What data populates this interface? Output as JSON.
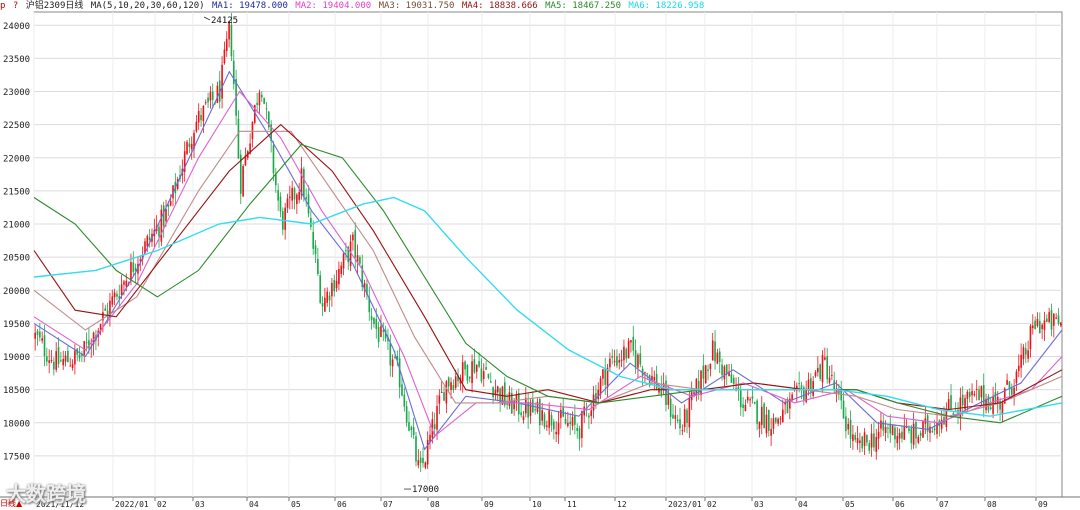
{
  "header": {
    "icon_a": "p",
    "icon_b": "?",
    "contract": "沪铝2309日线",
    "ma_spec": "MA(5,10,20,30,60,120)",
    "ma_values": [
      {
        "label": "MA1: 19478.000",
        "color": "#1f2a9c"
      },
      {
        "label": "MA2: 19404.000",
        "color": "#e040c8"
      },
      {
        "label": "MA3: 19031.750",
        "color": "#7a4b3a"
      },
      {
        "label": "MA4: 18838.666",
        "color": "#9a1010"
      },
      {
        "label": "MA5: 18467.250",
        "color": "#2a8a2a"
      },
      {
        "label": "MA6: 18226.958",
        "color": "#19d8e6"
      }
    ]
  },
  "watermark": "大数跨境",
  "corner_label": "日线▲",
  "chart_data": {
    "type": "candlestick",
    "y_ticks": [
      17500,
      18000,
      18500,
      19000,
      19500,
      20000,
      20500,
      21000,
      21500,
      22000,
      22500,
      23000,
      23500,
      24000
    ],
    "x_labels": [
      "2021/11/12",
      "2022/01",
      "02",
      "03",
      "04",
      "05",
      "06",
      "07",
      "08",
      "09",
      "10",
      "11",
      "12",
      "2023/01",
      "02",
      "03",
      "04",
      "05",
      "06",
      "07",
      "08",
      "09"
    ],
    "annotations": [
      {
        "text": "24125",
        "value": 24125
      },
      {
        "text": "17000",
        "value": 17000
      }
    ],
    "colors": {
      "up": "#e8141b",
      "down": "#19a84a",
      "grid": "#dcdcdc",
      "axis": "#888888"
    },
    "close_path": [
      {
        "t": 0.0,
        "v": 19300
      },
      {
        "t": 0.02,
        "v": 18900
      },
      {
        "t": 0.045,
        "v": 19000
      },
      {
        "t": 0.07,
        "v": 19700
      },
      {
        "t": 0.1,
        "v": 20500
      },
      {
        "t": 0.13,
        "v": 21200
      },
      {
        "t": 0.155,
        "v": 22500
      },
      {
        "t": 0.18,
        "v": 23000
      },
      {
        "t": 0.19,
        "v": 24000
      },
      {
        "t": 0.2,
        "v": 21600
      },
      {
        "t": 0.22,
        "v": 23200
      },
      {
        "t": 0.24,
        "v": 21000
      },
      {
        "t": 0.26,
        "v": 21700
      },
      {
        "t": 0.28,
        "v": 19800
      },
      {
        "t": 0.31,
        "v": 20700
      },
      {
        "t": 0.33,
        "v": 19500
      },
      {
        "t": 0.355,
        "v": 18700
      },
      {
        "t": 0.375,
        "v": 17200
      },
      {
        "t": 0.4,
        "v": 18600
      },
      {
        "t": 0.43,
        "v": 18900
      },
      {
        "t": 0.46,
        "v": 18300
      },
      {
        "t": 0.5,
        "v": 18100
      },
      {
        "t": 0.53,
        "v": 17900
      },
      {
        "t": 0.56,
        "v": 18900
      },
      {
        "t": 0.58,
        "v": 19100
      },
      {
        "t": 0.61,
        "v": 18500
      },
      {
        "t": 0.63,
        "v": 17900
      },
      {
        "t": 0.66,
        "v": 19100
      },
      {
        "t": 0.69,
        "v": 18300
      },
      {
        "t": 0.72,
        "v": 18000
      },
      {
        "t": 0.75,
        "v": 18500
      },
      {
        "t": 0.77,
        "v": 18900
      },
      {
        "t": 0.8,
        "v": 17600
      },
      {
        "t": 0.83,
        "v": 17900
      },
      {
        "t": 0.86,
        "v": 17800
      },
      {
        "t": 0.89,
        "v": 18200
      },
      {
        "t": 0.92,
        "v": 18400
      },
      {
        "t": 0.94,
        "v": 18300
      },
      {
        "t": 0.96,
        "v": 18800
      },
      {
        "t": 0.975,
        "v": 19500
      },
      {
        "t": 1.0,
        "v": 19500
      }
    ],
    "ma_paths": [
      {
        "name": "MA1",
        "color": "#6b6bd6",
        "points": [
          [
            0.0,
            19500
          ],
          [
            0.05,
            19000
          ],
          [
            0.1,
            20300
          ],
          [
            0.16,
            22300
          ],
          [
            0.19,
            23300
          ],
          [
            0.23,
            22300
          ],
          [
            0.27,
            21200
          ],
          [
            0.31,
            20400
          ],
          [
            0.35,
            19100
          ],
          [
            0.38,
            17600
          ],
          [
            0.42,
            18400
          ],
          [
            0.47,
            18300
          ],
          [
            0.53,
            18100
          ],
          [
            0.58,
            18900
          ],
          [
            0.63,
            18300
          ],
          [
            0.68,
            18800
          ],
          [
            0.73,
            18300
          ],
          [
            0.78,
            18600
          ],
          [
            0.82,
            18000
          ],
          [
            0.87,
            17900
          ],
          [
            0.92,
            18300
          ],
          [
            0.96,
            18600
          ],
          [
            1.0,
            19400
          ]
        ]
      },
      {
        "name": "MA2",
        "color": "#e060d0",
        "points": [
          [
            0.0,
            19600
          ],
          [
            0.05,
            19100
          ],
          [
            0.1,
            20100
          ],
          [
            0.16,
            22000
          ],
          [
            0.2,
            23000
          ],
          [
            0.24,
            22300
          ],
          [
            0.28,
            21200
          ],
          [
            0.32,
            20300
          ],
          [
            0.36,
            19000
          ],
          [
            0.39,
            17800
          ],
          [
            0.43,
            18300
          ],
          [
            0.48,
            18300
          ],
          [
            0.54,
            18200
          ],
          [
            0.59,
            18700
          ],
          [
            0.64,
            18400
          ],
          [
            0.69,
            18600
          ],
          [
            0.74,
            18300
          ],
          [
            0.79,
            18500
          ],
          [
            0.83,
            18100
          ],
          [
            0.88,
            18000
          ],
          [
            0.93,
            18300
          ],
          [
            0.97,
            18500
          ],
          [
            1.0,
            19000
          ]
        ]
      },
      {
        "name": "MA3",
        "color": "#c08a8a",
        "points": [
          [
            0.0,
            20000
          ],
          [
            0.05,
            19400
          ],
          [
            0.1,
            19900
          ],
          [
            0.16,
            21500
          ],
          [
            0.2,
            22400
          ],
          [
            0.25,
            22400
          ],
          [
            0.29,
            21500
          ],
          [
            0.33,
            20600
          ],
          [
            0.37,
            19300
          ],
          [
            0.41,
            18300
          ],
          [
            0.45,
            18300
          ],
          [
            0.5,
            18400
          ],
          [
            0.55,
            18300
          ],
          [
            0.6,
            18600
          ],
          [
            0.65,
            18500
          ],
          [
            0.7,
            18600
          ],
          [
            0.75,
            18500
          ],
          [
            0.8,
            18400
          ],
          [
            0.84,
            18200
          ],
          [
            0.89,
            18100
          ],
          [
            0.94,
            18300
          ],
          [
            1.0,
            18700
          ]
        ]
      },
      {
        "name": "MA4",
        "color": "#9a1010",
        "points": [
          [
            0.0,
            20600
          ],
          [
            0.04,
            19700
          ],
          [
            0.08,
            19600
          ],
          [
            0.14,
            20800
          ],
          [
            0.19,
            21800
          ],
          [
            0.24,
            22500
          ],
          [
            0.29,
            21800
          ],
          [
            0.33,
            20900
          ],
          [
            0.38,
            19600
          ],
          [
            0.42,
            18500
          ],
          [
            0.46,
            18400
          ],
          [
            0.5,
            18500
          ],
          [
            0.55,
            18300
          ],
          [
            0.6,
            18500
          ],
          [
            0.65,
            18500
          ],
          [
            0.7,
            18600
          ],
          [
            0.75,
            18500
          ],
          [
            0.8,
            18500
          ],
          [
            0.84,
            18300
          ],
          [
            0.89,
            18200
          ],
          [
            0.94,
            18300
          ],
          [
            1.0,
            18800
          ]
        ]
      },
      {
        "name": "MA5",
        "color": "#2a8a2a",
        "points": [
          [
            0.0,
            21400
          ],
          [
            0.04,
            21000
          ],
          [
            0.08,
            20300
          ],
          [
            0.12,
            19900
          ],
          [
            0.16,
            20300
          ],
          [
            0.21,
            21300
          ],
          [
            0.26,
            22200
          ],
          [
            0.3,
            22000
          ],
          [
            0.34,
            21200
          ],
          [
            0.38,
            20200
          ],
          [
            0.42,
            19200
          ],
          [
            0.46,
            18700
          ],
          [
            0.5,
            18400
          ],
          [
            0.55,
            18300
          ],
          [
            0.6,
            18400
          ],
          [
            0.65,
            18500
          ],
          [
            0.7,
            18500
          ],
          [
            0.75,
            18500
          ],
          [
            0.8,
            18500
          ],
          [
            0.84,
            18300
          ],
          [
            0.89,
            18100
          ],
          [
            0.94,
            18000
          ],
          [
            1.0,
            18400
          ]
        ]
      },
      {
        "name": "MA6",
        "color": "#33dded",
        "points": [
          [
            0.0,
            20200
          ],
          [
            0.06,
            20300
          ],
          [
            0.12,
            20600
          ],
          [
            0.18,
            21000
          ],
          [
            0.22,
            21100
          ],
          [
            0.27,
            21000
          ],
          [
            0.32,
            21300
          ],
          [
            0.35,
            21400
          ],
          [
            0.38,
            21200
          ],
          [
            0.42,
            20500
          ],
          [
            0.47,
            19700
          ],
          [
            0.52,
            19100
          ],
          [
            0.57,
            18700
          ],
          [
            0.62,
            18500
          ],
          [
            0.67,
            18500
          ],
          [
            0.72,
            18500
          ],
          [
            0.78,
            18500
          ],
          [
            0.83,
            18400
          ],
          [
            0.88,
            18200
          ],
          [
            0.93,
            18100
          ],
          [
            1.0,
            18300
          ]
        ]
      }
    ]
  }
}
